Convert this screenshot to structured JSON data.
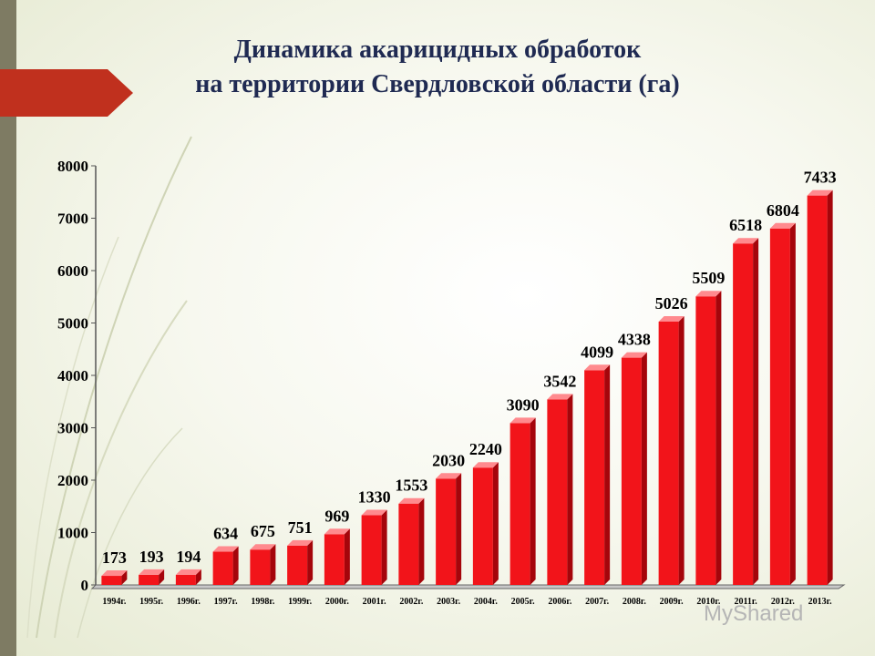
{
  "title_line1": "Динамика акарицидных обработок",
  "title_line2": "на территории Свердловской области  (га)",
  "watermark": "MyShared",
  "colors": {
    "bar_front": "#f2141a",
    "bar_side": "#a5050b",
    "bar_top": "#ff8a8e",
    "title": "#1f2a52",
    "accent_tab": "#c0301e"
  },
  "chart_data": {
    "type": "bar",
    "categories": [
      "1994г.",
      "1995г.",
      "1996г.",
      "1997г.",
      "1998г.",
      "1999г.",
      "2000г.",
      "2001г.",
      "2002г.",
      "2003г.",
      "2004г.",
      "2005г.",
      "2006г.",
      "2007г.",
      "2008г.",
      "2009г.",
      "2010г.",
      "2011г.",
      "2012г.",
      "2013г."
    ],
    "values": [
      173,
      193,
      194,
      634,
      675,
      751,
      969,
      1330,
      1553,
      2030,
      2240,
      3090,
      3542,
      4099,
      4338,
      5026,
      5509,
      6518,
      6804,
      7433
    ],
    "data_labels": [
      "173",
      "193",
      "194",
      "634",
      "675",
      "751",
      "969",
      "1330",
      "1553",
      "2030",
      "2240",
      "3090",
      "3542",
      "4099",
      "4338",
      "5026",
      "5509",
      "6518",
      "6804",
      "7433"
    ],
    "y_ticks": [
      "0",
      "1000",
      "2000",
      "3000",
      "4000",
      "5000",
      "6000",
      "7000",
      "8000"
    ],
    "ylim": [
      0,
      8000
    ],
    "grid": false,
    "legend": "none"
  }
}
